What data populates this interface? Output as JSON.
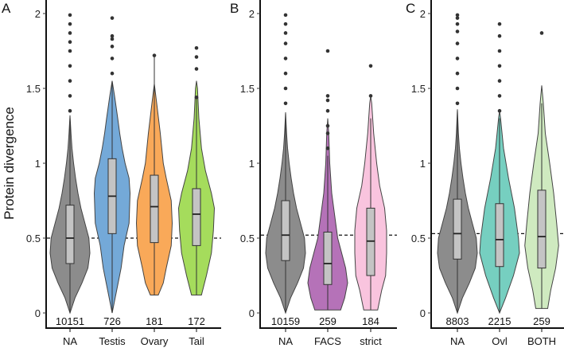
{
  "chart_data": [
    {
      "type": "violin",
      "panel": "A",
      "ylabel": "Protein divergence",
      "ylim": [
        0,
        2
      ],
      "yticks": [
        "0",
        "0.5",
        "1",
        "1.5",
        "2"
      ],
      "ytick_values": [
        0,
        0.5,
        1,
        1.5,
        2
      ],
      "reference_line": 0.5,
      "groups": [
        {
          "name": "NA",
          "n": "10151",
          "color": "#8c8c8c",
          "box": [
            0,
            0.33,
            0.5,
            0.72,
            1.3
          ],
          "outliers": [
            1.35,
            1.45,
            1.55,
            1.65,
            1.75,
            1.81,
            1.87,
            1.93,
            1.99
          ],
          "density": [
            [
              0,
              0
            ],
            [
              0.1,
              0.25
            ],
            [
              0.2,
              0.6
            ],
            [
              0.3,
              0.9
            ],
            [
              0.4,
              1
            ],
            [
              0.5,
              0.95
            ],
            [
              0.6,
              0.75
            ],
            [
              0.7,
              0.55
            ],
            [
              0.8,
              0.4
            ],
            [
              0.9,
              0.28
            ],
            [
              1.0,
              0.18
            ],
            [
              1.1,
              0.1
            ],
            [
              1.2,
              0.05
            ],
            [
              1.32,
              0
            ]
          ]
        },
        {
          "name": "Testis",
          "n": "726",
          "color": "#74a9d8",
          "box": [
            0,
            0.53,
            0.78,
            1.03,
            1.55
          ],
          "outliers": [
            1.6,
            1.7,
            1.78,
            1.83,
            1.85,
            1.97
          ],
          "density": [
            [
              0,
              0
            ],
            [
              0.1,
              0.15
            ],
            [
              0.2,
              0.3
            ],
            [
              0.3,
              0.45
            ],
            [
              0.45,
              0.6
            ],
            [
              0.6,
              0.85
            ],
            [
              0.8,
              0.9
            ],
            [
              0.9,
              0.85
            ],
            [
              1.0,
              0.65
            ],
            [
              1.1,
              0.5
            ],
            [
              1.2,
              0.38
            ],
            [
              1.3,
              0.28
            ],
            [
              1.45,
              0.12
            ],
            [
              1.55,
              0
            ]
          ]
        },
        {
          "name": "Ovary",
          "n": "181",
          "color": "#f9a959",
          "box": [
            0.12,
            0.47,
            0.71,
            0.92,
            1.72
          ],
          "outliers": [
            1.72
          ],
          "density": [
            [
              0.12,
              0.2
            ],
            [
              0.2,
              0.45
            ],
            [
              0.3,
              0.6
            ],
            [
              0.45,
              0.85
            ],
            [
              0.6,
              0.9
            ],
            [
              0.75,
              0.85
            ],
            [
              0.9,
              0.6
            ],
            [
              1.0,
              0.45
            ],
            [
              1.2,
              0.3
            ],
            [
              1.4,
              0.12
            ],
            [
              1.53,
              0
            ]
          ]
        },
        {
          "name": "Tail",
          "n": "172",
          "color": "#a5dc5c",
          "box": [
            0.12,
            0.45,
            0.66,
            0.83,
            1.44
          ],
          "outliers": [
            1.44,
            1.63,
            1.71,
            1.77
          ],
          "density": [
            [
              0.12,
              0.25
            ],
            [
              0.25,
              0.5
            ],
            [
              0.4,
              0.75
            ],
            [
              0.55,
              0.85
            ],
            [
              0.7,
              0.9
            ],
            [
              0.8,
              0.75
            ],
            [
              0.95,
              0.45
            ],
            [
              1.1,
              0.25
            ],
            [
              1.3,
              0.12
            ],
            [
              1.5,
              0.05
            ],
            [
              1.55,
              0
            ]
          ]
        }
      ]
    },
    {
      "type": "violin",
      "panel": "B",
      "ylim": [
        0,
        2
      ],
      "yticks": [
        "0",
        "0.5",
        "1",
        "1.5",
        "2"
      ],
      "ytick_values": [
        0,
        0.5,
        1,
        1.5,
        2
      ],
      "reference_line": 0.52,
      "groups": [
        {
          "name": "NA",
          "n": "10159",
          "color": "#8c8c8c",
          "box": [
            0,
            0.35,
            0.52,
            0.75,
            1.33
          ],
          "outliers": [
            1.4,
            1.5,
            1.6,
            1.7,
            1.8,
            1.87,
            1.93,
            1.99
          ],
          "density": [
            [
              0,
              0
            ],
            [
              0.1,
              0.25
            ],
            [
              0.2,
              0.6
            ],
            [
              0.3,
              0.9
            ],
            [
              0.4,
              1
            ],
            [
              0.5,
              0.95
            ],
            [
              0.6,
              0.75
            ],
            [
              0.7,
              0.55
            ],
            [
              0.8,
              0.4
            ],
            [
              0.9,
              0.28
            ],
            [
              1.0,
              0.18
            ],
            [
              1.1,
              0.1
            ],
            [
              1.2,
              0.05
            ],
            [
              1.34,
              0
            ]
          ]
        },
        {
          "name": "FACS",
          "n": "259",
          "color": "#b572b8",
          "box": [
            0.02,
            0.19,
            0.33,
            0.54,
            1.05
          ],
          "outliers": [
            1.1,
            1.2,
            1.25,
            1.35,
            1.42,
            1.45,
            1.75
          ],
          "density": [
            [
              0.02,
              0.65
            ],
            [
              0.1,
              0.85
            ],
            [
              0.2,
              1.0
            ],
            [
              0.3,
              0.9
            ],
            [
              0.4,
              0.7
            ],
            [
              0.5,
              0.5
            ],
            [
              0.65,
              0.35
            ],
            [
              0.8,
              0.2
            ],
            [
              1.0,
              0.1
            ],
            [
              1.2,
              0.05
            ],
            [
              1.3,
              0
            ]
          ]
        },
        {
          "name": "strict",
          "n": "184",
          "color": "#f9c4de",
          "box": [
            0.02,
            0.25,
            0.48,
            0.7,
            1.3
          ],
          "outliers": [
            1.45,
            1.65
          ],
          "density": [
            [
              0.02,
              0.35
            ],
            [
              0.15,
              0.55
            ],
            [
              0.25,
              0.75
            ],
            [
              0.4,
              0.8
            ],
            [
              0.55,
              0.8
            ],
            [
              0.7,
              0.7
            ],
            [
              0.85,
              0.45
            ],
            [
              1.0,
              0.3
            ],
            [
              1.2,
              0.15
            ],
            [
              1.4,
              0.05
            ],
            [
              1.45,
              0
            ]
          ]
        }
      ]
    },
    {
      "type": "violin",
      "panel": "C",
      "ylim": [
        0,
        2
      ],
      "yticks": [
        "0",
        "0.5",
        "1",
        "1.5",
        "2"
      ],
      "ytick_values": [
        0,
        0.5,
        1,
        1.5,
        2
      ],
      "reference_line": 0.53,
      "groups": [
        {
          "name": "NA",
          "n": "8803",
          "color": "#8c8c8c",
          "box": [
            0,
            0.36,
            0.53,
            0.76,
            1.35
          ],
          "outliers": [
            1.4,
            1.5,
            1.6,
            1.7,
            1.8,
            1.88,
            1.93,
            1.97,
            1.99
          ],
          "density": [
            [
              0,
              0
            ],
            [
              0.1,
              0.25
            ],
            [
              0.2,
              0.6
            ],
            [
              0.3,
              0.9
            ],
            [
              0.4,
              1
            ],
            [
              0.5,
              0.95
            ],
            [
              0.6,
              0.75
            ],
            [
              0.7,
              0.55
            ],
            [
              0.8,
              0.4
            ],
            [
              0.9,
              0.28
            ],
            [
              1.0,
              0.18
            ],
            [
              1.1,
              0.1
            ],
            [
              1.2,
              0.05
            ],
            [
              1.36,
              0
            ]
          ]
        },
        {
          "name": "Ovl",
          "n": "2215",
          "color": "#76cfc0",
          "box": [
            0,
            0.31,
            0.49,
            0.73,
            1.3
          ],
          "outliers": [
            1.35,
            1.45,
            1.55,
            1.65,
            1.75,
            1.85,
            1.93
          ],
          "density": [
            [
              0,
              0
            ],
            [
              0.1,
              0.3
            ],
            [
              0.25,
              0.7
            ],
            [
              0.4,
              1.0
            ],
            [
              0.5,
              0.95
            ],
            [
              0.7,
              0.75
            ],
            [
              0.9,
              0.45
            ],
            [
              1.1,
              0.2
            ],
            [
              1.3,
              0.05
            ],
            [
              1.35,
              0
            ]
          ]
        },
        {
          "name": "BOTH",
          "n": "259",
          "color": "#cfeac0",
          "box": [
            0.03,
            0.3,
            0.51,
            0.82,
            1.4
          ],
          "outliers": [
            1.87
          ],
          "density": [
            [
              0.03,
              0.3
            ],
            [
              0.15,
              0.45
            ],
            [
              0.3,
              0.7
            ],
            [
              0.45,
              0.85
            ],
            [
              0.6,
              0.75
            ],
            [
              0.8,
              0.6
            ],
            [
              1.0,
              0.4
            ],
            [
              1.2,
              0.18
            ],
            [
              1.4,
              0.08
            ],
            [
              1.52,
              0
            ]
          ]
        }
      ]
    }
  ]
}
